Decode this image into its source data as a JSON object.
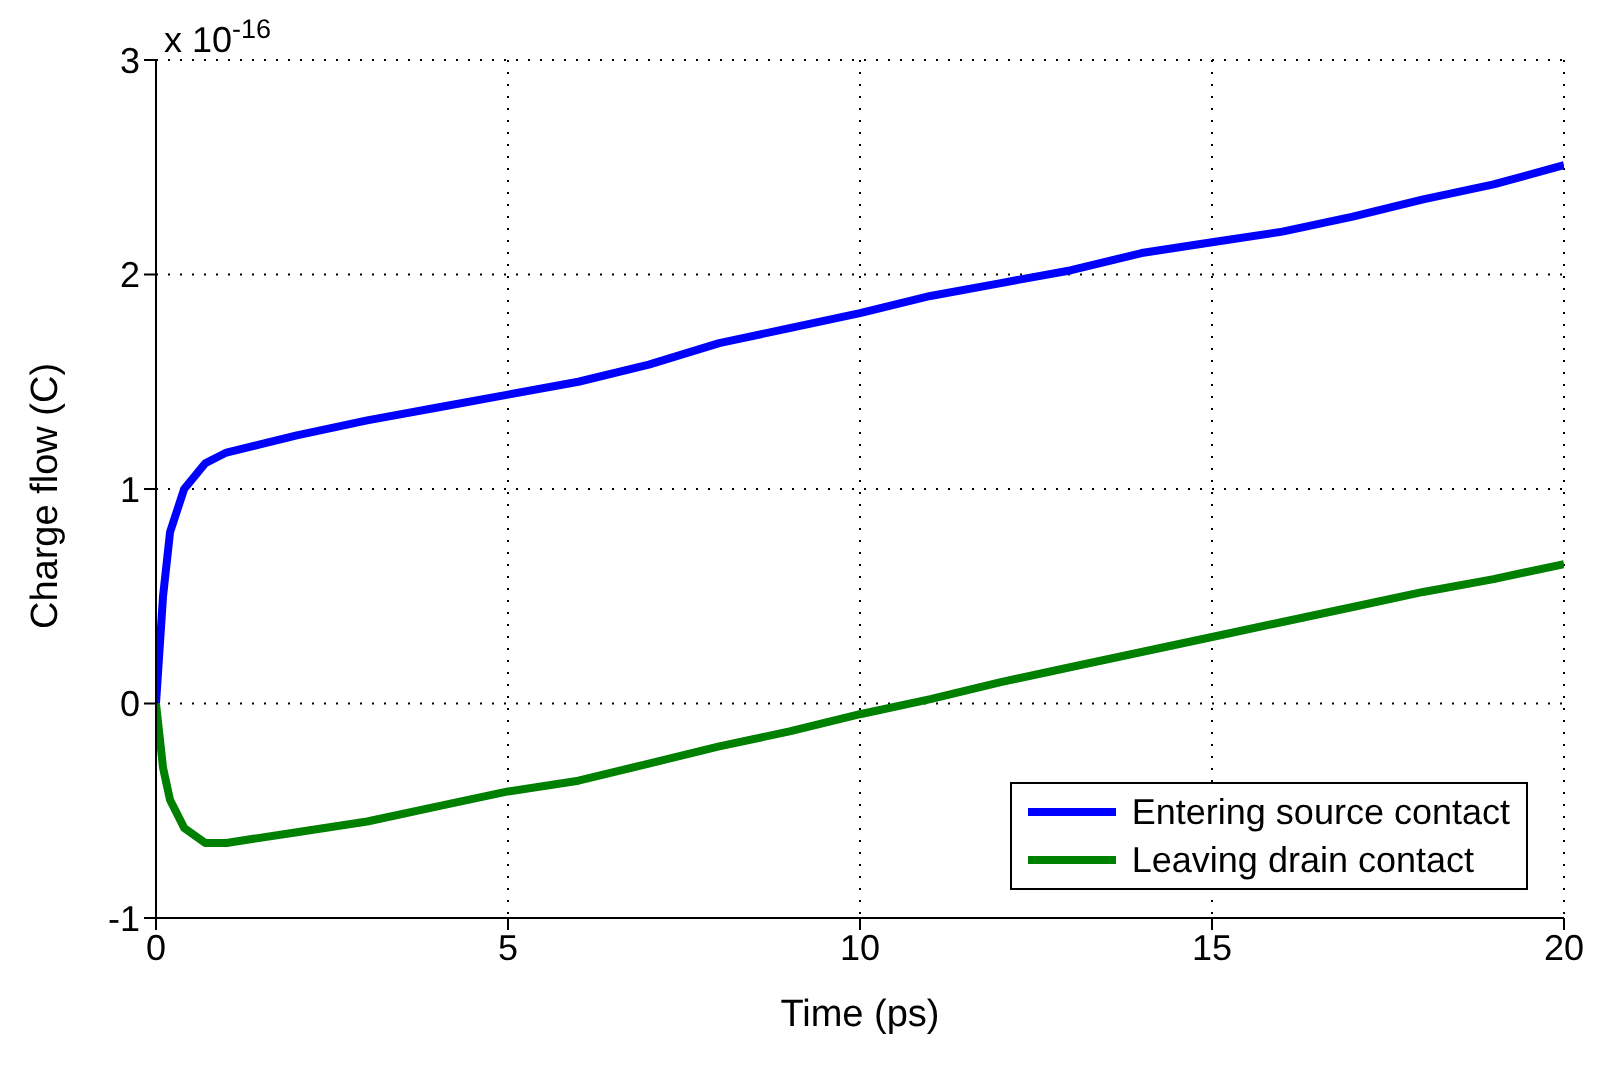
{
  "chart_data": {
    "type": "line",
    "xlabel": "Time (ps)",
    "ylabel": "Charge flow (C)",
    "annotations": [
      "x 10$^{-16}$"
    ],
    "x": [
      0,
      0.1,
      0.2,
      0.4,
      0.7,
      1,
      2,
      3,
      4,
      5,
      6,
      7,
      8,
      9,
      10,
      11,
      12,
      13,
      14,
      15,
      16,
      17,
      18,
      19,
      20
    ],
    "series": [
      {
        "name": "Entering source contact",
        "color": "#0000ff",
        "values": [
          0,
          0.5,
          0.8,
          1.0,
          1.12,
          1.17,
          1.25,
          1.32,
          1.38,
          1.44,
          1.5,
          1.58,
          1.68,
          1.75,
          1.82,
          1.9,
          1.96,
          2.02,
          2.1,
          2.15,
          2.2,
          2.27,
          2.35,
          2.42,
          2.51
        ]
      },
      {
        "name": "Leaving drain contact",
        "color": "#008000",
        "values": [
          0,
          -0.3,
          -0.45,
          -0.58,
          -0.65,
          -0.65,
          -0.6,
          -0.55,
          -0.48,
          -0.41,
          -0.36,
          -0.28,
          -0.2,
          -0.13,
          -0.05,
          0.02,
          0.1,
          0.17,
          0.24,
          0.31,
          0.38,
          0.45,
          0.52,
          0.58,
          0.65
        ]
      }
    ],
    "xlim": [
      0,
      20
    ],
    "xticks": [
      0,
      5,
      10,
      15,
      20
    ],
    "ylim": [
      -1,
      3
    ],
    "yticks": [
      -1,
      0,
      1,
      2,
      3
    ],
    "grid": true,
    "legend": "bottom right",
    "marker": "none",
    "line_style": "solid"
  }
}
